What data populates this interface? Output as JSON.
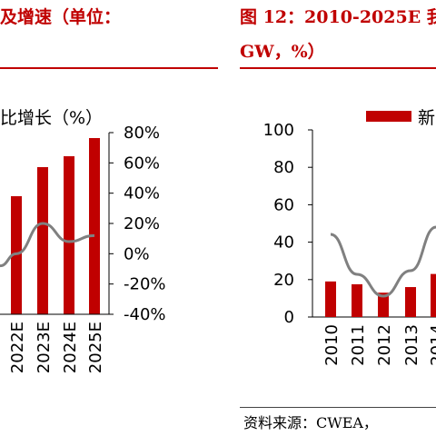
{
  "page": {
    "left_title": "及增速（单位：",
    "right_title_line1": "图 12：2010-2025E 我",
    "right_title_line2": "GW，%）",
    "source_text": "资料来源：CWEA，"
  },
  "colors": {
    "accent": "#c00000",
    "bar": "#c00000",
    "line": "#808080"
  },
  "chart_data": [
    {
      "type": "bar",
      "legend_label": "比增长（%）",
      "categories": [
        "2022E",
        "2023E",
        "2024E",
        "2025E"
      ],
      "series": [
        {
          "type": "bar",
          "axis": "left",
          "values": [
            null,
            null,
            null,
            null
          ]
        },
        {
          "type": "line",
          "axis": "right",
          "values": [
            0,
            20,
            8,
            12
          ]
        }
      ],
      "bar_heights_fraction": [
        0.65,
        0.81,
        0.87,
        0.97
      ],
      "y2_ticks": [
        "80%",
        "60%",
        "40%",
        "20%",
        "0%",
        "-20%",
        "-40%"
      ],
      "y2lim": [
        -40,
        80
      ]
    },
    {
      "type": "bar",
      "legend_label": "新",
      "categories": [
        "2010",
        "2011",
        "2012",
        "2013",
        "2014"
      ],
      "series": [
        {
          "type": "bar",
          "axis": "left",
          "values": [
            19,
            17.5,
            13,
            16,
            23
          ]
        },
        {
          "type": "line",
          "axis": "right",
          "values": [
            null,
            null,
            null,
            null,
            null
          ]
        }
      ],
      "y_ticks": [
        "100",
        "80",
        "60",
        "40",
        "20",
        "0"
      ],
      "ylim": [
        0,
        100
      ]
    }
  ]
}
